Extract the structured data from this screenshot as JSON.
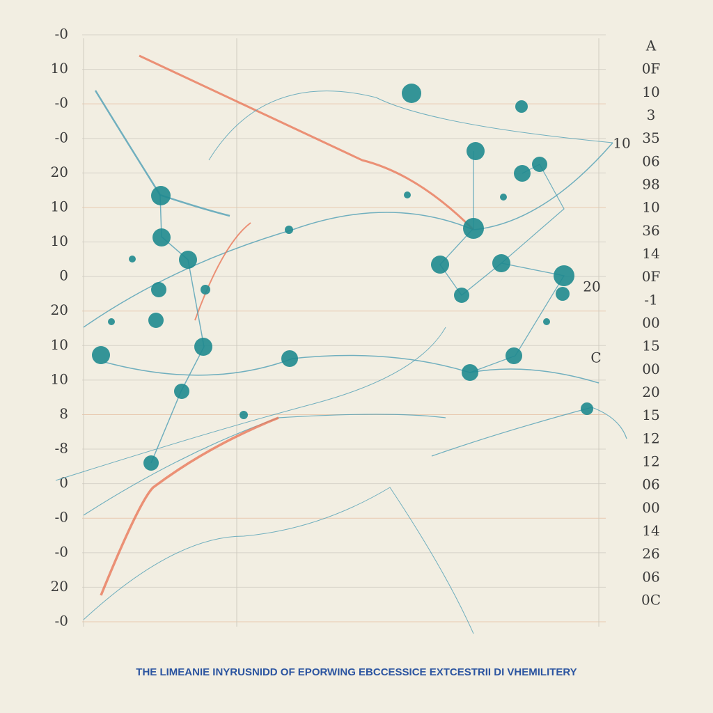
{
  "header": {
    "title": "THE LIMEANIE INYRUSNIDD OF EPORWING EBCCESSICE EXTCESTRII DI VHEMILITERY"
  },
  "left_labels": [
    "-0",
    "10",
    "-0",
    "-0",
    "20",
    "10",
    "10",
    "0",
    "20",
    "10",
    "10",
    "8",
    "-8",
    "0",
    "-0",
    "-0",
    "20",
    "-0"
  ],
  "right_labels": [
    "A",
    "0F",
    "10",
    "3",
    "35",
    "06",
    "98",
    "10",
    "36",
    "14",
    "0F",
    "-1",
    "00",
    "15",
    "00",
    "20",
    "15",
    "12",
    "12",
    "06",
    "00",
    "14",
    "26",
    "06",
    "0C"
  ],
  "inline_labels": [
    "10",
    "20",
    "C"
  ]
}
